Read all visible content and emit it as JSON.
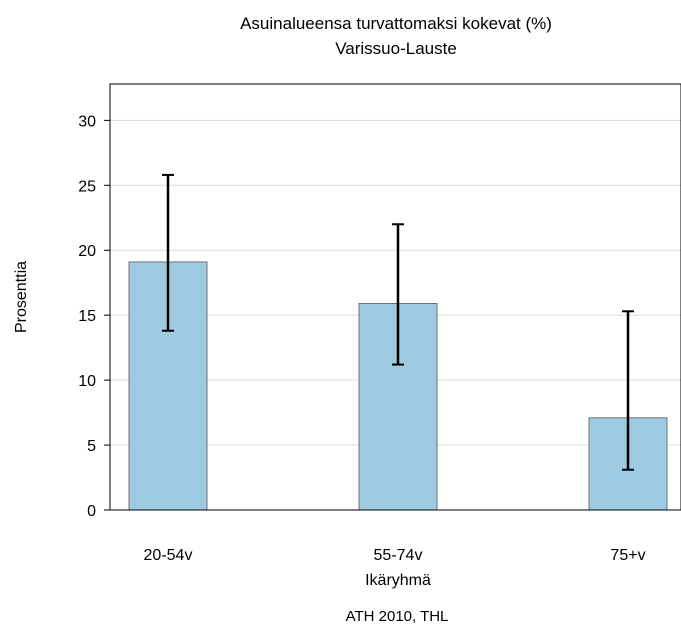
{
  "chart_data": {
    "type": "bar",
    "title": "Asuinalueensa turvattomaksi kokevat (%)",
    "subtitle": "Varissuo-Lauste",
    "xlabel": "Ikäryhmä",
    "ylabel": "Prosenttia",
    "source": "ATH 2010, THL",
    "categories": [
      "20-54v",
      "55-74v",
      "75+v"
    ],
    "values": [
      19.1,
      15.9,
      7.1
    ],
    "error_low": [
      13.8,
      11.2,
      3.1
    ],
    "error_high": [
      25.8,
      22.0,
      15.3
    ],
    "ylim": [
      0,
      32.8
    ],
    "yticks": [
      0,
      5,
      10,
      15,
      20,
      25,
      30
    ],
    "grid": true,
    "legend": "none",
    "colors": {
      "bar_fill": "#9ecae1",
      "bar_stroke": "#707070",
      "grid": "#d9d9d9",
      "error_bar": "#000000"
    }
  }
}
